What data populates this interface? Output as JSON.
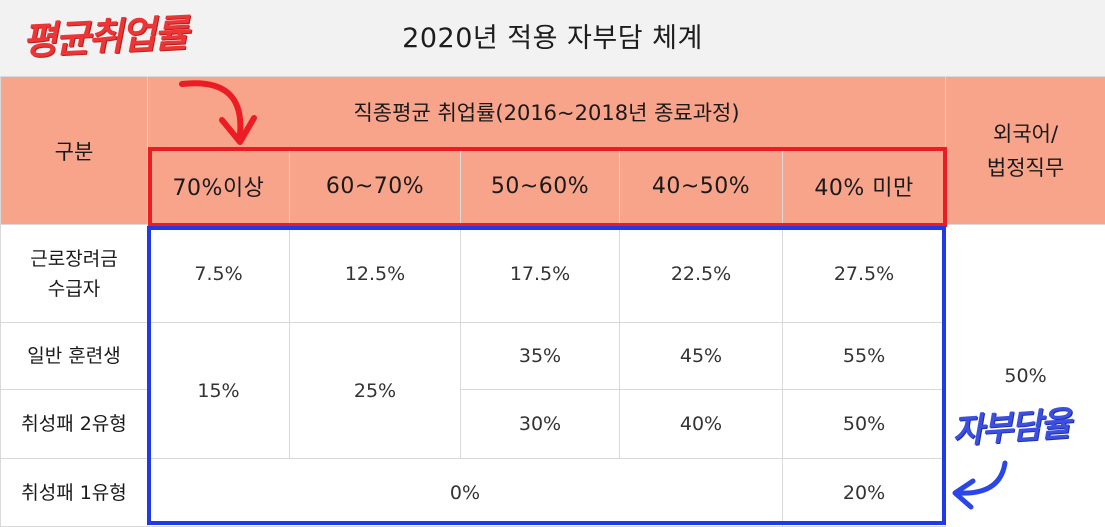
{
  "title": "2020년 적용 자부담 체계",
  "annotations": {
    "top_left": "평균취업률",
    "right": "자부담율",
    "colors": {
      "red": "#ec1c24",
      "blue": "#1f3ae6"
    }
  },
  "header": {
    "gubun": "구분",
    "group_title": "직종평균 취업률(2016~2018년 종료과정)",
    "columns": [
      "70%이상",
      "60~70%",
      "50~60%",
      "40~50%",
      "40% 미만"
    ],
    "foreign_line1": "외국어/",
    "foreign_line2": "법정직무",
    "header_color": "#f7a48b"
  },
  "rows": {
    "r1": {
      "label_line1": "근로장려금",
      "label_line2": "수급자",
      "values": [
        "7.5%",
        "12.5%",
        "17.5%",
        "22.5%",
        "27.5%"
      ]
    },
    "r2": {
      "label": "일반 훈련생",
      "values": [
        "35%",
        "45%",
        "55%"
      ]
    },
    "r3": {
      "label": "취성패 2유형",
      "values": [
        "30%",
        "40%",
        "50%"
      ]
    },
    "merged": {
      "c1": "15%",
      "c2": "25%",
      "foreign": "50%"
    },
    "r4": {
      "label": "취성패 1유형",
      "zero": "0%",
      "last": "20%"
    }
  }
}
